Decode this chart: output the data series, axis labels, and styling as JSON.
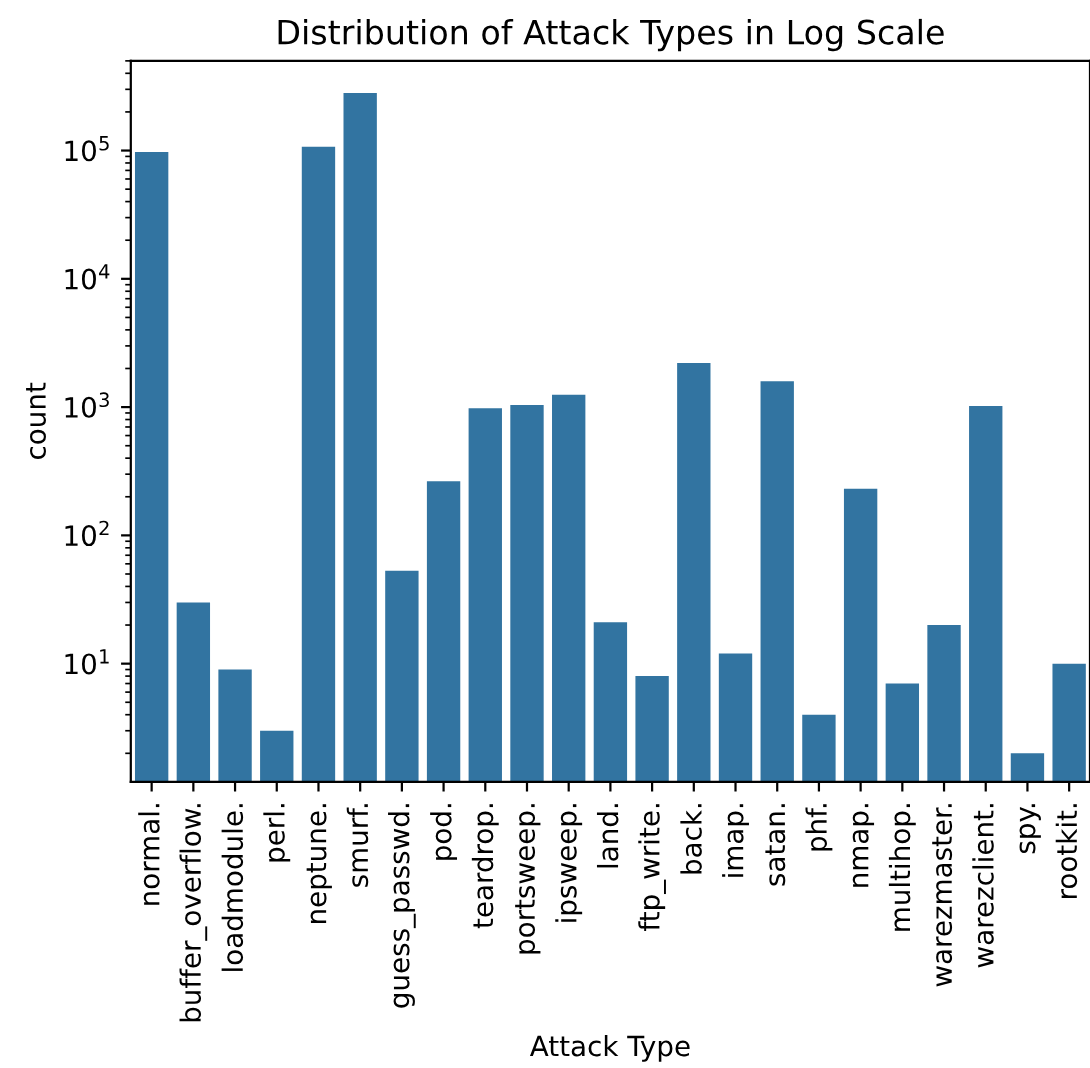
{
  "chart_data": {
    "type": "bar",
    "title": "Distribution of Attack Types in Log Scale",
    "xlabel": "Attack Type",
    "ylabel": "count",
    "categories": [
      "normal.",
      "buffer_overflow.",
      "loadmodule.",
      "perl.",
      "neptune.",
      "smurf.",
      "guess_passwd.",
      "pod.",
      "teardrop.",
      "portsweep.",
      "ipsweep.",
      "land.",
      "ftp_write.",
      "back.",
      "imap.",
      "satan.",
      "phf.",
      "nmap.",
      "multihop.",
      "warezmaster.",
      "warezclient.",
      "spy.",
      "rootkit."
    ],
    "values": [
      97278,
      30,
      9,
      3,
      107201,
      280790,
      53,
      264,
      979,
      1040,
      1247,
      21,
      8,
      2203,
      12,
      1589,
      4,
      231,
      7,
      20,
      1020,
      2,
      10
    ],
    "color": "#3274a1",
    "log": "y",
    "ylim": [
      1.2,
      500000
    ],
    "yticks": [
      {
        "value": 10,
        "label": "10$^{1}$"
      },
      {
        "value": 100,
        "label": "10$^{2}$"
      },
      {
        "value": 1000,
        "label": "10$^{3}$"
      },
      {
        "value": 10000,
        "label": "10$^{4}$"
      },
      {
        "value": 100000,
        "label": "10$^{5}$"
      }
    ],
    "grid": false,
    "legend": false
  }
}
